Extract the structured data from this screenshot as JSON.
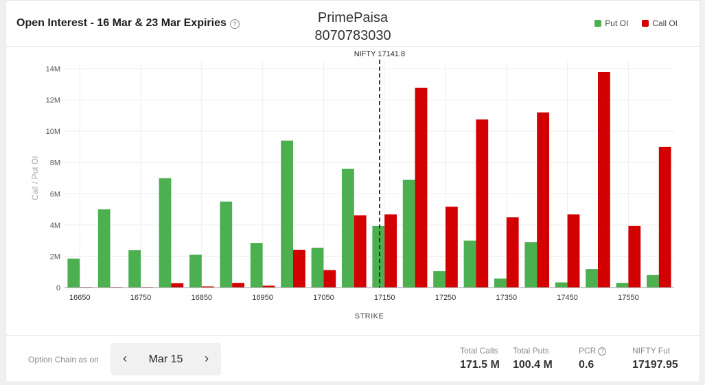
{
  "header": {
    "title": "Open Interest - 16 Mar & 23 Mar Expiries",
    "help_glyph": "?",
    "brand_name": "PrimePaisa",
    "brand_phone": "8070783030"
  },
  "legend": {
    "put_label": "Put OI",
    "call_label": "Call OI"
  },
  "colors": {
    "put": "#4caf50",
    "call": "#d20000",
    "grid": "#eeeeee",
    "axis_text": "#555555"
  },
  "chart_data": {
    "type": "bar",
    "xlabel": "STRIKE",
    "ylabel": "Call / Put OI",
    "ylim": [
      0,
      14000000
    ],
    "yticks": [
      0,
      2000000,
      4000000,
      6000000,
      8000000,
      10000000,
      12000000,
      14000000
    ],
    "ytick_labels": [
      "0",
      "2M",
      "4M",
      "6M",
      "8M",
      "10M",
      "12M",
      "14M"
    ],
    "categories": [
      16650,
      16700,
      16750,
      16800,
      16850,
      16900,
      16950,
      17000,
      17050,
      17100,
      17150,
      17200,
      17250,
      17300,
      17350,
      17400,
      17450,
      17500,
      17550,
      17600
    ],
    "xtick_labels": [
      "16650",
      "16750",
      "16850",
      "16950",
      "17050",
      "17150",
      "17250",
      "17350",
      "17450",
      "17550"
    ],
    "series": [
      {
        "name": "Put OI",
        "values": [
          1850000,
          5000000,
          2400000,
          7000000,
          2100000,
          5500000,
          2850000,
          9400000,
          2550000,
          7600000,
          3950000,
          6900000,
          1050000,
          3000000,
          580000,
          2900000,
          330000,
          1180000,
          300000,
          800000
        ]
      },
      {
        "name": "Call OI",
        "values": [
          20000,
          30000,
          30000,
          280000,
          70000,
          300000,
          120000,
          2420000,
          1120000,
          4620000,
          4680000,
          12780000,
          5170000,
          10750000,
          4500000,
          11200000,
          4680000,
          13780000,
          3950000,
          9000000
        ]
      }
    ],
    "reference_line": {
      "x": 17141.8,
      "label": "NIFTY 17141.8"
    },
    "grid": true,
    "legend_position": "top-right"
  },
  "footer": {
    "option_chain_label": "Option Chain as on",
    "date_value": "Mar 15",
    "prev_glyph": "‹",
    "next_glyph": "›",
    "stats": [
      {
        "label": "Total Calls",
        "value": "171.5 M"
      },
      {
        "label": "Total Puts",
        "value": "100.4 M"
      },
      {
        "label": "PCR",
        "value": "0.6"
      },
      {
        "label": "NIFTY Fut",
        "value": "17197.95"
      }
    ]
  },
  "icons": {
    "help": "help-circle-icon",
    "prev": "chevron-left-icon",
    "next": "chevron-right-icon"
  }
}
